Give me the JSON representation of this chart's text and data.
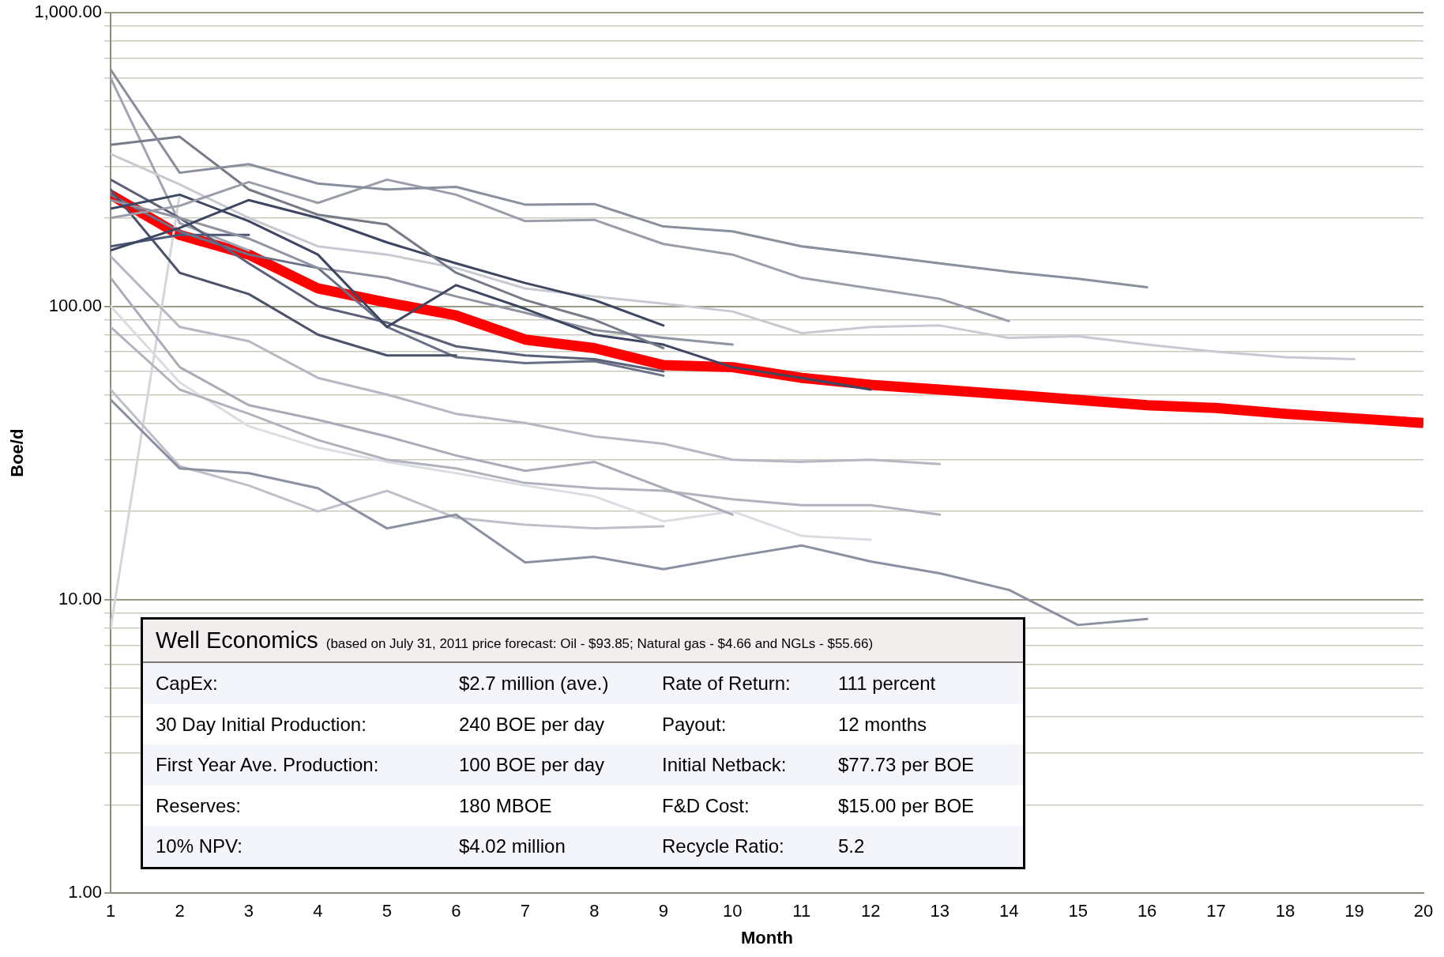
{
  "chart_data": {
    "type": "line",
    "xlabel": "Month",
    "ylabel": "Boe/d",
    "log": "y",
    "grid": "y",
    "legend": false,
    "marker": "none",
    "line_style": "solid",
    "xlim": [
      1,
      20
    ],
    "xticks": [
      1,
      2,
      3,
      4,
      5,
      6,
      7,
      8,
      9,
      10,
      11,
      12,
      13,
      14,
      15,
      16,
      17,
      18,
      19,
      20
    ],
    "ylim": [
      1,
      1000
    ],
    "yticks": [
      {
        "value": 1,
        "label": "1.00"
      },
      {
        "value": 2,
        "label": null
      },
      {
        "value": 3,
        "label": null
      },
      {
        "value": 4,
        "label": null
      },
      {
        "value": 5,
        "label": null
      },
      {
        "value": 6,
        "label": null
      },
      {
        "value": 7,
        "label": null
      },
      {
        "value": 8,
        "label": null
      },
      {
        "value": 9,
        "label": null
      },
      {
        "value": 10,
        "label": "10.00"
      },
      {
        "value": 20,
        "label": null
      },
      {
        "value": 30,
        "label": null
      },
      {
        "value": 40,
        "label": null
      },
      {
        "value": 50,
        "label": null
      },
      {
        "value": 60,
        "label": null
      },
      {
        "value": 70,
        "label": null
      },
      {
        "value": 80,
        "label": null
      },
      {
        "value": 90,
        "label": null
      },
      {
        "value": 100,
        "label": "100.00"
      },
      {
        "value": 200,
        "label": null
      },
      {
        "value": 300,
        "label": null
      },
      {
        "value": 400,
        "label": null
      },
      {
        "value": 500,
        "label": null
      },
      {
        "value": 600,
        "label": null
      },
      {
        "value": 700,
        "label": null
      },
      {
        "value": 800,
        "label": null
      },
      {
        "value": 900,
        "label": null
      },
      {
        "value": 1000,
        "label": "1,000.00"
      }
    ],
    "x": [
      1,
      2,
      3,
      4,
      5,
      6,
      7,
      8,
      9,
      10,
      11,
      12,
      13,
      14,
      15,
      16,
      17,
      18,
      19,
      20
    ],
    "series": [
      {
        "color": "#8a8f9e",
        "values": [
          640,
          285,
          305,
          262,
          250,
          255,
          222,
          223,
          187,
          180,
          160,
          150,
          140,
          131,
          124,
          116,
          null,
          null,
          null,
          null
        ]
      },
      {
        "color": "#9a9eaa",
        "values": [
          200,
          220,
          265,
          225,
          270,
          240,
          195,
          197,
          163,
          150,
          125,
          115,
          106,
          89,
          null,
          null,
          null,
          null,
          null,
          null
        ]
      },
      {
        "color": "#777b88",
        "values": [
          355,
          378,
          250,
          205,
          190,
          130,
          105,
          90,
          72,
          null,
          null,
          null,
          null,
          null,
          null,
          null,
          null,
          null,
          null,
          null
        ]
      },
      {
        "color": "#3d4660",
        "values": [
          155,
          185,
          230,
          200,
          165,
          140,
          120,
          105,
          86,
          null,
          null,
          null,
          null,
          null,
          null,
          null,
          null,
          null,
          null,
          null
        ]
      },
      {
        "color": "#c8cad2",
        "values": [
          330,
          260,
          200,
          160,
          150,
          135,
          115,
          108,
          102,
          96,
          81,
          85,
          86,
          78,
          79,
          74,
          70,
          67,
          66,
          null
        ]
      },
      {
        "color": "#3e4762",
        "values": [
          215,
          240,
          195,
          150,
          85,
          118,
          98,
          80,
          74,
          62,
          57,
          52,
          null,
          null,
          null,
          null,
          null,
          null,
          null,
          null
        ]
      },
      {
        "color": "#9094a2",
        "values": [
          230,
          200,
          170,
          135,
          125,
          108,
          95,
          83,
          78,
          74,
          null,
          null,
          null,
          null,
          null,
          null,
          null,
          null,
          null,
          null
        ]
      },
      {
        "color": "#4b5269",
        "values": [
          250,
          130,
          110,
          80,
          68,
          68,
          null,
          null,
          null,
          null,
          null,
          null,
          null,
          null,
          null,
          null,
          null,
          null,
          null,
          null
        ]
      },
      {
        "color": "#5a6078",
        "values": [
          270,
          200,
          140,
          100,
          88,
          73,
          68,
          66,
          60,
          null,
          null,
          null,
          null,
          null,
          null,
          null,
          null,
          null,
          null,
          null
        ]
      },
      {
        "color": "#6a7088",
        "values": [
          240,
          180,
          150,
          135,
          85,
          67,
          64,
          65,
          58,
          null,
          null,
          null,
          null,
          null,
          null,
          null,
          null,
          null,
          null,
          null
        ]
      },
      {
        "color": "#4d5877",
        "values": [
          160,
          175,
          175,
          null,
          null,
          null,
          null,
          null,
          null,
          null,
          null,
          null,
          null,
          null,
          null,
          null,
          null,
          null,
          null,
          null
        ]
      },
      {
        "color": "#b5b8c2",
        "values": [
          148,
          85,
          76,
          57,
          50,
          43,
          40,
          36,
          34,
          30,
          29.5,
          30,
          29,
          null,
          null,
          null,
          null,
          null,
          null,
          null
        ]
      },
      {
        "color": "#a9acb8",
        "values": [
          125,
          62,
          46,
          41,
          36,
          31,
          27.5,
          29.5,
          24,
          19.5,
          null,
          null,
          null,
          null,
          null,
          null,
          null,
          null,
          null,
          null
        ]
      },
      {
        "color": "#b0b3bd",
        "values": [
          85,
          52,
          43,
          35,
          30,
          28,
          25,
          24,
          23.5,
          22,
          21,
          21,
          19.5,
          null,
          null,
          null,
          null,
          null,
          null,
          null
        ]
      },
      {
        "color": "#dcdde2",
        "values": [
          100,
          55,
          39,
          33,
          29.5,
          27,
          24.5,
          22.5,
          18.5,
          20,
          16.5,
          16,
          null,
          null,
          null,
          null,
          null,
          null,
          null,
          null
        ]
      },
      {
        "color": "#8c91a2",
        "values": [
          48,
          28,
          27,
          24,
          17.5,
          19.5,
          13.4,
          14,
          12.7,
          14,
          15.3,
          13.5,
          12.3,
          10.8,
          8.2,
          8.6,
          null,
          null,
          null,
          null
        ]
      },
      {
        "color": "#bdc0c8",
        "values": [
          52,
          28.5,
          24.5,
          20,
          23.5,
          19,
          18,
          17.5,
          17.8,
          null,
          null,
          null,
          null,
          null,
          null,
          null,
          null,
          null,
          null,
          null
        ]
      },
      {
        "color": "#d5d6dc",
        "values": [
          8,
          240,
          null,
          null,
          null,
          null,
          null,
          null,
          null,
          null,
          null,
          null,
          null,
          null,
          null,
          null,
          null,
          null,
          null,
          null
        ]
      },
      {
        "color": "#a0a3b0",
        "values": [
          600,
          192,
          155,
          null,
          null,
          null,
          null,
          null,
          null,
          null,
          null,
          null,
          null,
          null,
          null,
          null,
          null,
          null,
          null,
          null
        ]
      },
      {
        "color": "#ff0000",
        "values": [
          240,
          175,
          150,
          115,
          103,
          93,
          77,
          72,
          63,
          62,
          57,
          54,
          52,
          50,
          48,
          46,
          45,
          43,
          41.5,
          40
        ]
      }
    ],
    "annotations": [
      "Well Economics",
      "(based on July 31, 2011 price forecast: Oil - $93.85; Natural gas - $4.66 and NGLs - $55.66)",
      "CapEx:",
      "$2.7 million (ave.)",
      "Rate of Return:",
      "111 percent",
      "30 Day Initial Production:",
      "240 BOE per day",
      "Payout:",
      "12 months",
      "First Year Ave. Production:",
      "100 BOE per day",
      "Initial Netback:",
      "$77.73 per BOE",
      "Reserves:",
      "180 MBOE",
      "F&D Cost:",
      "$15.00 per BOE",
      "10% NPV:",
      "$4.02 million",
      "Recycle Ratio:",
      "5.2"
    ]
  }
}
